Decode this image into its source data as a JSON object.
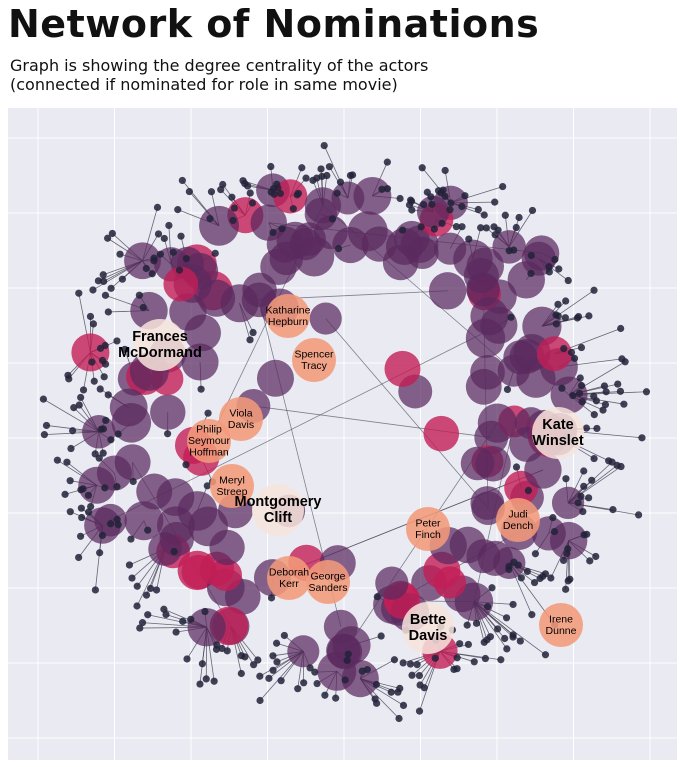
{
  "title": "Network of Nominations",
  "subtitle_lines": [
    "Graph is showing the degree centrality of the actors",
    "(connected if nominated for role in same movie)"
  ],
  "chart_data": {
    "type": "network",
    "title": "Network of Nominations",
    "subtitle": "Graph is showing the degree centrality of the actors (connected if nominated for role in same movie)",
    "grid": true,
    "background": "#eaeaf2",
    "encoding": "node size and color = degree centrality",
    "color_scale": {
      "low": "#5a2a5e",
      "mid": "#c21e56",
      "high": "#f39a7a",
      "highest": "#f7e4dc"
    },
    "labeled_nodes": [
      {
        "name": "Frances McDormand",
        "centrality_rank": "highest"
      },
      {
        "name": "Kate Winslet",
        "centrality_rank": "highest"
      },
      {
        "name": "Montgomery Clift",
        "centrality_rank": "highest"
      },
      {
        "name": "Bette Davis",
        "centrality_rank": "highest"
      },
      {
        "name": "Katharine Hepburn",
        "centrality_rank": "high"
      },
      {
        "name": "Spencer Tracy",
        "centrality_rank": "high"
      },
      {
        "name": "Viola Davis",
        "centrality_rank": "high"
      },
      {
        "name": "Philip Seymour Hoffman",
        "centrality_rank": "high"
      },
      {
        "name": "Meryl Streep",
        "centrality_rank": "high"
      },
      {
        "name": "Judi Dench",
        "centrality_rank": "high"
      },
      {
        "name": "Peter Finch",
        "centrality_rank": "high"
      },
      {
        "name": "Deborah Kerr",
        "centrality_rank": "high"
      },
      {
        "name": "George Sanders",
        "centrality_rank": "high"
      },
      {
        "name": "Irene Dunne",
        "centrality_rank": "high"
      }
    ]
  }
}
